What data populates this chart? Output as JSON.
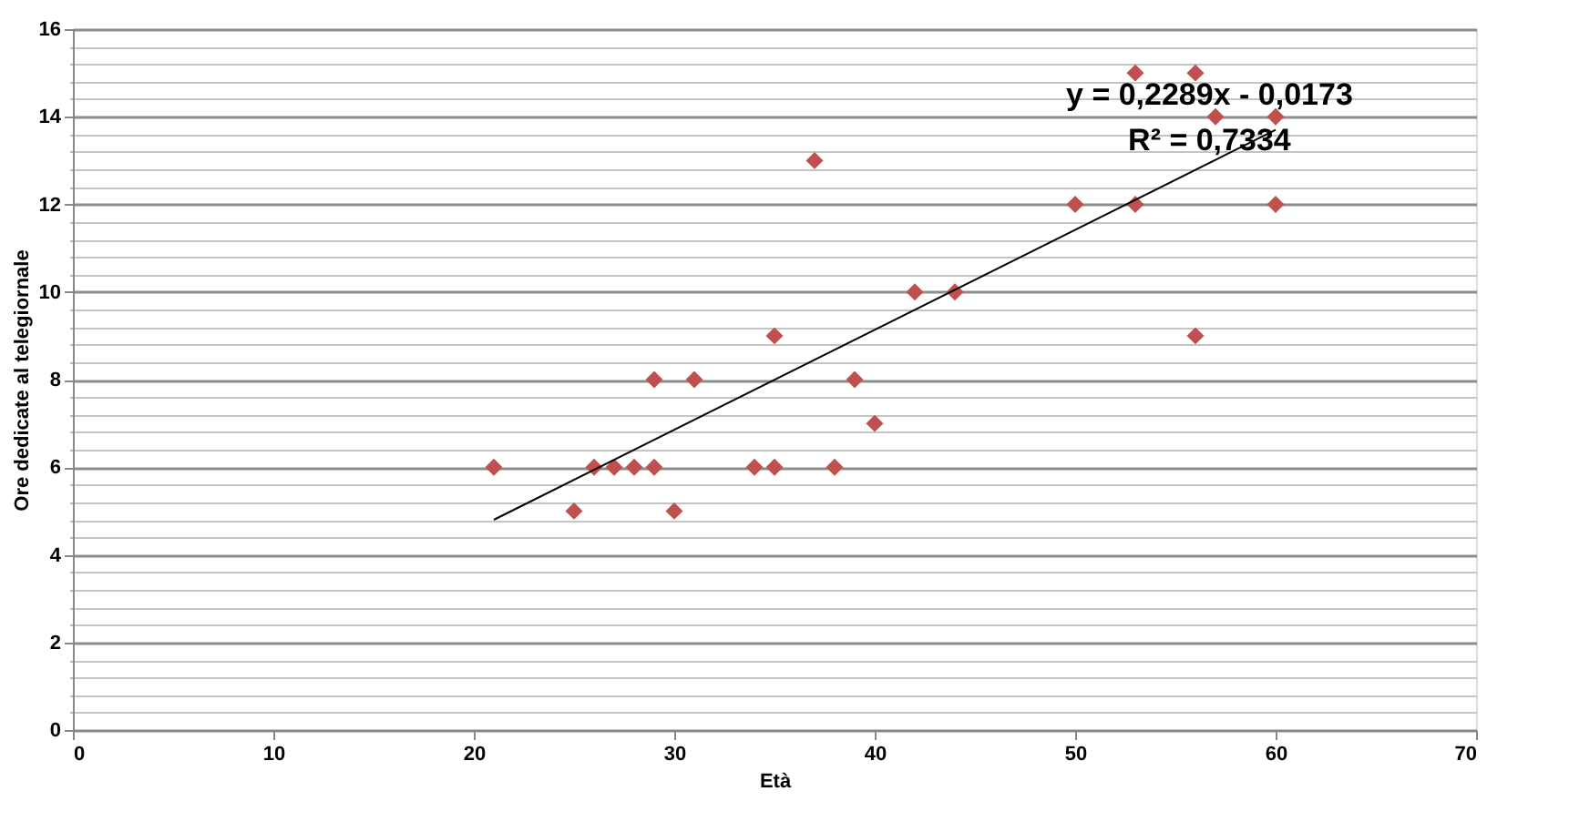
{
  "chart_data": {
    "type": "scatter",
    "xlabel": "Età",
    "ylabel": "Ore dedicate al telegiornale",
    "xlim": [
      0,
      70
    ],
    "xticks": [
      0,
      10,
      20,
      30,
      40,
      50,
      60,
      70
    ],
    "ylim": [
      0,
      16
    ],
    "yticks": [
      0,
      {
        "value": 0.4,
        "label": null
      },
      {
        "value": 0.8,
        "label": null
      },
      {
        "value": 1.2,
        "label": null
      },
      {
        "value": 1.6,
        "label": null
      },
      2,
      {
        "value": 2.4,
        "label": null
      },
      {
        "value": 2.8,
        "label": null
      },
      {
        "value": 3.2,
        "label": null
      },
      {
        "value": 3.6,
        "label": null
      },
      4,
      {
        "value": 4.4,
        "label": null
      },
      {
        "value": 4.8,
        "label": null
      },
      {
        "value": 5.2,
        "label": null
      },
      {
        "value": 5.6,
        "label": null
      },
      6,
      {
        "value": 6.4,
        "label": null
      },
      {
        "value": 6.8,
        "label": null
      },
      {
        "value": 7.2,
        "label": null
      },
      {
        "value": 7.6,
        "label": null
      },
      8,
      {
        "value": 8.4,
        "label": null
      },
      {
        "value": 8.8,
        "label": null
      },
      {
        "value": 9.2,
        "label": null
      },
      {
        "value": 9.6,
        "label": null
      },
      10,
      {
        "value": 10.4,
        "label": null
      },
      {
        "value": 10.8,
        "label": null
      },
      {
        "value": 11.2,
        "label": null
      },
      {
        "value": 11.6,
        "label": null
      },
      12,
      {
        "value": 12.4,
        "label": null
      },
      {
        "value": 12.8,
        "label": null
      },
      {
        "value": 13.2,
        "label": null
      },
      {
        "value": 13.6,
        "label": null
      },
      14,
      {
        "value": 14.4,
        "label": null
      },
      {
        "value": 14.8,
        "label": null
      },
      {
        "value": 15.2,
        "label": null
      },
      {
        "value": 15.6,
        "label": null
      },
      16
    ],
    "grid": "y",
    "series": [
      {
        "color": "#c0504d",
        "marker": "diamond",
        "x": [
          21,
          25,
          26,
          27,
          28,
          29,
          29,
          30,
          31,
          34,
          35,
          35,
          37,
          38,
          39,
          40,
          42,
          44,
          50,
          53,
          53,
          56,
          56,
          57,
          60,
          60
        ],
        "values": [
          6,
          5,
          6,
          6,
          6,
          6,
          8,
          5,
          8,
          6,
          6,
          9,
          13,
          6,
          8,
          7,
          10,
          10,
          12,
          12,
          15,
          15,
          9,
          14,
          14,
          12
        ]
      },
      {
        "type": "line",
        "color": "#000000",
        "x": [
          21,
          60
        ],
        "values": [
          4.8,
          13.7
        ]
      }
    ],
    "annotations": [
      "y = 0,2289x - 0,0173",
      "R² = 0,7334"
    ]
  }
}
